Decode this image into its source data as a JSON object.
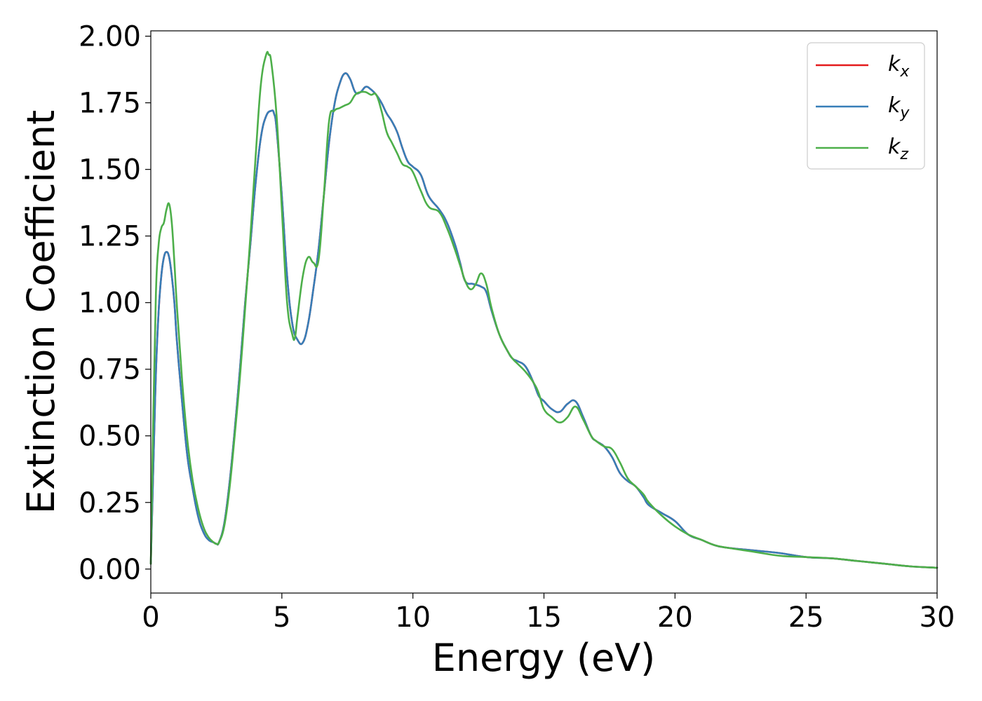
{
  "chart_data": {
    "type": "line",
    "title": "",
    "xlabel": "Energy (eV)",
    "ylabel": "Extinction Coefficient",
    "xlim": [
      0,
      30
    ],
    "ylim": [
      -0.09,
      2.02
    ],
    "xticks": [
      0,
      5,
      10,
      15,
      20,
      25,
      30
    ],
    "xtick_labels": [
      "0",
      "5",
      "10",
      "15",
      "20",
      "25",
      "30"
    ],
    "yticks": [
      0,
      0.25,
      0.5,
      0.75,
      1.0,
      1.25,
      1.5,
      1.75,
      2.0
    ],
    "ytick_labels": [
      "0.00",
      "0.25",
      "0.50",
      "0.75",
      "1.00",
      "1.25",
      "1.50",
      "1.75",
      "2.00"
    ],
    "grid": false,
    "legend_position": "top-right",
    "colors": {
      "kx": "#e41a1c",
      "ky": "#377eb8",
      "kz": "#4daf4a"
    },
    "series": [
      {
        "key": "kx",
        "label_main": "k",
        "label_sub": "x",
        "color": "#e41a1c",
        "x": [
          0.0,
          0.1,
          0.2,
          0.3,
          0.4,
          0.5,
          0.6,
          0.7,
          0.8,
          0.9,
          1.0,
          1.2,
          1.4,
          1.6,
          1.8,
          2.0,
          2.2,
          2.4,
          2.5,
          2.6,
          2.8,
          3.0,
          3.2,
          3.4,
          3.6,
          3.8,
          4.0,
          4.2,
          4.4,
          4.6,
          4.7,
          4.8,
          5.0,
          5.2,
          5.4,
          5.6,
          5.8,
          6.0,
          6.2,
          6.4,
          6.6,
          6.8,
          7.0,
          7.2,
          7.4,
          7.6,
          7.8,
          8.0,
          8.2,
          8.4,
          8.6,
          8.8,
          9.0,
          9.2,
          9.4,
          9.6,
          9.8,
          10.0,
          10.3,
          10.6,
          11.0,
          11.3,
          11.6,
          11.8,
          12.0,
          12.3,
          12.6,
          12.8,
          13.0,
          13.3,
          13.6,
          13.8,
          14.0,
          14.3,
          14.6,
          14.8,
          15.0,
          15.3,
          15.6,
          15.9,
          16.2,
          16.5,
          16.8,
          17.0,
          17.3,
          17.6,
          17.9,
          18.2,
          18.5,
          18.8,
          19.0,
          19.5,
          20.0,
          20.5,
          21.0,
          21.5,
          22.0,
          23.0,
          24.0,
          25.0,
          26.0,
          27.0,
          28.0,
          29.0,
          30.0
        ],
        "y": [
          0.02,
          0.4,
          0.75,
          0.97,
          1.1,
          1.17,
          1.19,
          1.17,
          1.1,
          1.0,
          0.85,
          0.62,
          0.42,
          0.3,
          0.2,
          0.14,
          0.11,
          0.1,
          0.095,
          0.1,
          0.17,
          0.32,
          0.52,
          0.75,
          1.0,
          1.22,
          1.45,
          1.62,
          1.7,
          1.72,
          1.71,
          1.65,
          1.4,
          1.1,
          0.92,
          0.86,
          0.85,
          0.92,
          1.05,
          1.2,
          1.4,
          1.6,
          1.74,
          1.82,
          1.86,
          1.84,
          1.79,
          1.79,
          1.81,
          1.8,
          1.78,
          1.75,
          1.71,
          1.68,
          1.64,
          1.58,
          1.53,
          1.51,
          1.48,
          1.4,
          1.35,
          1.3,
          1.22,
          1.15,
          1.08,
          1.07,
          1.06,
          1.04,
          0.97,
          0.88,
          0.82,
          0.79,
          0.78,
          0.76,
          0.7,
          0.65,
          0.63,
          0.6,
          0.59,
          0.62,
          0.63,
          0.57,
          0.5,
          0.48,
          0.46,
          0.42,
          0.36,
          0.33,
          0.31,
          0.27,
          0.24,
          0.21,
          0.18,
          0.13,
          0.11,
          0.09,
          0.08,
          0.07,
          0.06,
          0.045,
          0.04,
          0.03,
          0.02,
          0.01,
          0.005
        ]
      },
      {
        "key": "ky",
        "label_main": "k",
        "label_sub": "y",
        "color": "#377eb8",
        "x": [
          0.0,
          0.1,
          0.2,
          0.3,
          0.4,
          0.5,
          0.6,
          0.7,
          0.8,
          0.9,
          1.0,
          1.2,
          1.4,
          1.6,
          1.8,
          2.0,
          2.2,
          2.4,
          2.5,
          2.6,
          2.8,
          3.0,
          3.2,
          3.4,
          3.6,
          3.8,
          4.0,
          4.2,
          4.4,
          4.6,
          4.7,
          4.8,
          5.0,
          5.2,
          5.4,
          5.6,
          5.8,
          6.0,
          6.2,
          6.4,
          6.6,
          6.8,
          7.0,
          7.2,
          7.4,
          7.6,
          7.8,
          8.0,
          8.2,
          8.4,
          8.6,
          8.8,
          9.0,
          9.2,
          9.4,
          9.6,
          9.8,
          10.0,
          10.3,
          10.6,
          11.0,
          11.3,
          11.6,
          11.8,
          12.0,
          12.3,
          12.6,
          12.8,
          13.0,
          13.3,
          13.6,
          13.8,
          14.0,
          14.3,
          14.6,
          14.8,
          15.0,
          15.3,
          15.6,
          15.9,
          16.2,
          16.5,
          16.8,
          17.0,
          17.3,
          17.6,
          17.9,
          18.2,
          18.5,
          18.8,
          19.0,
          19.5,
          20.0,
          20.5,
          21.0,
          21.5,
          22.0,
          23.0,
          24.0,
          25.0,
          26.0,
          27.0,
          28.0,
          29.0,
          30.0
        ],
        "y": [
          0.02,
          0.4,
          0.75,
          0.97,
          1.1,
          1.17,
          1.19,
          1.17,
          1.1,
          1.0,
          0.85,
          0.62,
          0.42,
          0.3,
          0.2,
          0.14,
          0.11,
          0.1,
          0.095,
          0.1,
          0.17,
          0.32,
          0.52,
          0.75,
          1.0,
          1.22,
          1.45,
          1.62,
          1.7,
          1.72,
          1.71,
          1.65,
          1.4,
          1.1,
          0.92,
          0.86,
          0.85,
          0.92,
          1.05,
          1.2,
          1.4,
          1.6,
          1.74,
          1.82,
          1.86,
          1.84,
          1.79,
          1.79,
          1.81,
          1.8,
          1.78,
          1.75,
          1.71,
          1.68,
          1.64,
          1.58,
          1.53,
          1.51,
          1.48,
          1.4,
          1.35,
          1.3,
          1.22,
          1.15,
          1.08,
          1.07,
          1.06,
          1.04,
          0.97,
          0.88,
          0.82,
          0.79,
          0.78,
          0.76,
          0.7,
          0.65,
          0.63,
          0.6,
          0.59,
          0.62,
          0.63,
          0.57,
          0.5,
          0.48,
          0.46,
          0.42,
          0.36,
          0.33,
          0.31,
          0.27,
          0.24,
          0.21,
          0.18,
          0.13,
          0.11,
          0.09,
          0.08,
          0.07,
          0.06,
          0.045,
          0.04,
          0.03,
          0.02,
          0.01,
          0.005
        ]
      },
      {
        "key": "kz",
        "label_main": "k",
        "label_sub": "z",
        "color": "#4daf4a",
        "x": [
          0.0,
          0.1,
          0.2,
          0.3,
          0.4,
          0.5,
          0.6,
          0.7,
          0.8,
          0.9,
          1.0,
          1.2,
          1.4,
          1.6,
          1.8,
          2.0,
          2.2,
          2.4,
          2.5,
          2.6,
          2.8,
          3.0,
          3.2,
          3.4,
          3.6,
          3.8,
          4.0,
          4.2,
          4.4,
          4.5,
          4.6,
          4.8,
          5.0,
          5.2,
          5.4,
          5.5,
          5.6,
          5.8,
          6.0,
          6.2,
          6.4,
          6.6,
          6.8,
          7.0,
          7.2,
          7.4,
          7.6,
          7.8,
          8.0,
          8.2,
          8.4,
          8.6,
          8.8,
          9.0,
          9.2,
          9.4,
          9.6,
          9.8,
          10.0,
          10.3,
          10.6,
          11.0,
          11.3,
          11.6,
          11.8,
          12.0,
          12.2,
          12.4,
          12.6,
          12.8,
          13.0,
          13.3,
          13.6,
          13.8,
          14.0,
          14.3,
          14.6,
          14.8,
          15.0,
          15.3,
          15.6,
          15.9,
          16.2,
          16.5,
          16.8,
          17.0,
          17.3,
          17.6,
          17.9,
          18.2,
          18.5,
          18.8,
          19.0,
          19.5,
          20.0,
          20.5,
          21.0,
          21.5,
          22.0,
          23.0,
          24.0,
          25.0,
          26.0,
          27.0,
          28.0,
          29.0,
          30.0
        ],
        "y": [
          0.02,
          0.6,
          1.05,
          1.22,
          1.28,
          1.3,
          1.35,
          1.37,
          1.3,
          1.15,
          0.98,
          0.7,
          0.48,
          0.33,
          0.23,
          0.16,
          0.12,
          0.1,
          0.095,
          0.1,
          0.16,
          0.3,
          0.5,
          0.72,
          0.98,
          1.25,
          1.55,
          1.82,
          1.93,
          1.93,
          1.9,
          1.7,
          1.35,
          1.0,
          0.88,
          0.87,
          0.95,
          1.1,
          1.17,
          1.15,
          1.16,
          1.4,
          1.68,
          1.72,
          1.73,
          1.74,
          1.75,
          1.78,
          1.79,
          1.79,
          1.78,
          1.78,
          1.72,
          1.64,
          1.6,
          1.56,
          1.52,
          1.51,
          1.49,
          1.42,
          1.36,
          1.34,
          1.28,
          1.2,
          1.14,
          1.08,
          1.05,
          1.07,
          1.11,
          1.07,
          0.98,
          0.88,
          0.82,
          0.79,
          0.77,
          0.74,
          0.7,
          0.66,
          0.6,
          0.57,
          0.55,
          0.57,
          0.61,
          0.56,
          0.5,
          0.48,
          0.46,
          0.45,
          0.4,
          0.34,
          0.31,
          0.28,
          0.25,
          0.2,
          0.16,
          0.13,
          0.11,
          0.09,
          0.08,
          0.065,
          0.05,
          0.045,
          0.04,
          0.03,
          0.02,
          0.01,
          0.005
        ]
      }
    ]
  }
}
